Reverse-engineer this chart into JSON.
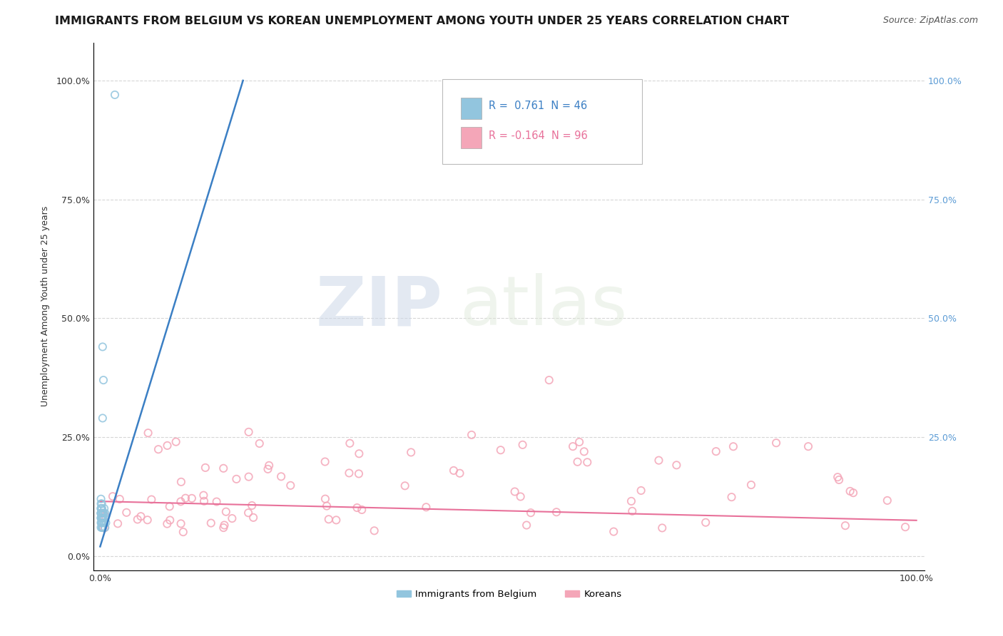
{
  "title": "IMMIGRANTS FROM BELGIUM VS KOREAN UNEMPLOYMENT AMONG YOUTH UNDER 25 YEARS CORRELATION CHART",
  "source": "Source: ZipAtlas.com",
  "ylabel": "Unemployment Among Youth under 25 years",
  "watermark_zip": "ZIP",
  "watermark_atlas": "atlas",
  "legend_blue_r": "0.761",
  "legend_blue_n": "46",
  "legend_pink_r": "-0.164",
  "legend_pink_n": "96",
  "blue_color": "#92c5de",
  "pink_color": "#f4a6b8",
  "blue_line_color": "#3b7fc4",
  "pink_line_color": "#e8719a",
  "right_axis_color": "#5b9bd5",
  "grid_color": "#cccccc",
  "title_fontsize": 11.5,
  "source_fontsize": 9,
  "axis_tick_fontsize": 9,
  "ylabel_fontsize": 9,
  "right_tick_color": "#5b9bd5",
  "legend_text_blue_color": "#3b7fc4",
  "legend_text_pink_color": "#e8719a"
}
